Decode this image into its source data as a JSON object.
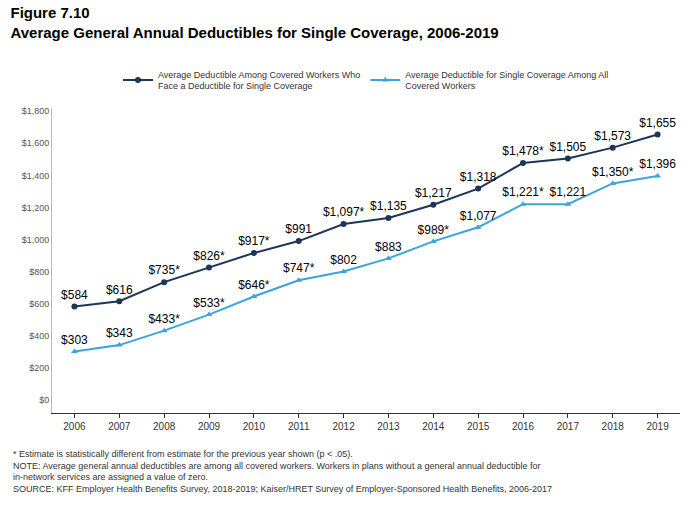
{
  "chart_data": {
    "type": "line",
    "title": "Figure 7.10",
    "subtitle": "Average General Annual Deductibles for Single Coverage, 2006-2019",
    "categories": [
      "2006",
      "2007",
      "2008",
      "2009",
      "2010",
      "2011",
      "2012",
      "2013",
      "2014",
      "2015",
      "2016",
      "2017",
      "2018",
      "2019"
    ],
    "series": [
      {
        "name": "Average Deductible Among Covered Workers Who Face a Deductible for Single Coverage",
        "color": "#1d3557",
        "marker": "circle",
        "values": [
          584,
          616,
          735,
          826,
          917,
          991,
          1097,
          1135,
          1217,
          1318,
          1478,
          1505,
          1573,
          1655
        ],
        "value_labels": [
          "$584",
          "$616",
          "$735*",
          "$826*",
          "$917*",
          "$991",
          "$1,097*",
          "$1,135",
          "$1,217",
          "$1,318",
          "$1,478*",
          "$1,505",
          "$1,573",
          "$1,655"
        ]
      },
      {
        "name": "Average Deductible for Single Coverage Among All Covered Workers",
        "color": "#3ba3de",
        "marker": "triangle-up",
        "values": [
          303,
          343,
          433,
          533,
          646,
          747,
          802,
          883,
          989,
          1077,
          1221,
          1221,
          1350,
          1396
        ],
        "value_labels": [
          "$303",
          "$343",
          "$433*",
          "$533*",
          "$646*",
          "$747*",
          "$802",
          "$883",
          "$989*",
          "$1,077",
          "$1,221*",
          "$1,221",
          "$1,350*",
          "$1,396"
        ]
      }
    ],
    "ylim": [
      -80,
      1820
    ],
    "yticks": [
      {
        "value": 0,
        "label": "$0"
      },
      {
        "value": 200,
        "label": "$200"
      },
      {
        "value": 400,
        "label": "$400"
      },
      {
        "value": 600,
        "label": "$600"
      },
      {
        "value": 800,
        "label": "$800"
      },
      {
        "value": 1000,
        "label": "$1,000"
      },
      {
        "value": 1200,
        "label": "$1,200"
      },
      {
        "value": 1400,
        "label": "$1,400"
      },
      {
        "value": 1600,
        "label": "$1,600"
      },
      {
        "value": 1800,
        "label": "$1,800"
      }
    ],
    "grid": false,
    "legend": "top",
    "data_labels": true,
    "notes": [
      "* Estimate is statistically different from estimate for the previous year shown (p < .05).",
      "NOTE: Average general annual deductibles are among all covered workers. Workers in plans without a general annual deductible for in-network services are assigned a value of zero.",
      "SOURCE: KFF Employer Health Benefits Survey, 2018-2019; Kaiser/HRET Survey of Employer-Sponsored Health Benefits, 2006-2017"
    ]
  }
}
